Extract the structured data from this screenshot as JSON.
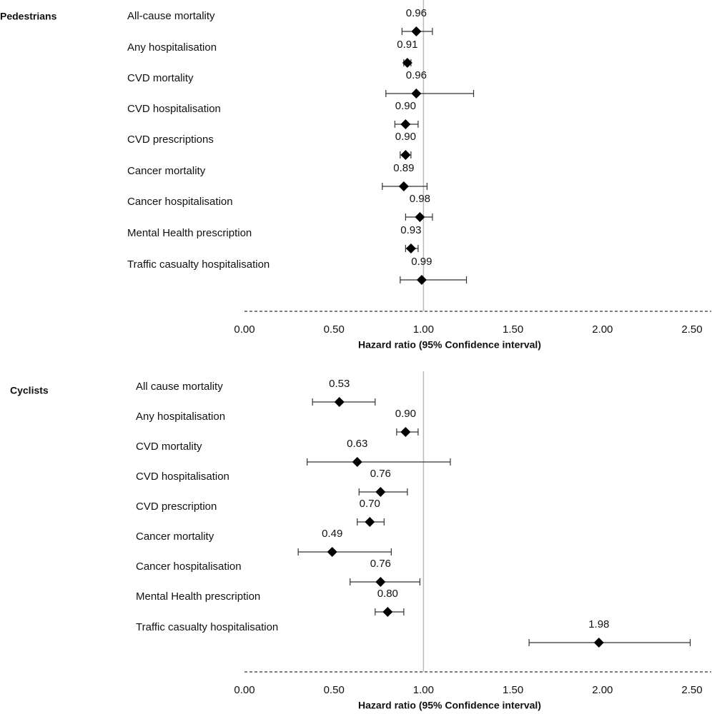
{
  "chart_data": [
    {
      "type": "forest",
      "title": "Pedestrians",
      "categories": [
        "All-cause mortality",
        "Any hospitalisation",
        "CVD mortality",
        "CVD hospitalisation",
        "CVD prescriptions",
        "Cancer mortality",
        "Cancer hospitalisation",
        "Mental Health prescription",
        "Traffic casualty hospitalisation"
      ],
      "values": [
        0.96,
        0.91,
        0.96,
        0.9,
        0.9,
        0.89,
        0.98,
        0.93,
        0.99
      ],
      "value_labels": [
        "0.96",
        "0.91",
        "0.96",
        "0.90",
        "0.90",
        "0.89",
        "0.98",
        "0.93",
        "0.99"
      ],
      "lower": [
        0.88,
        0.89,
        0.79,
        0.84,
        0.87,
        0.77,
        0.9,
        0.9,
        0.87
      ],
      "upper": [
        1.05,
        0.93,
        1.28,
        0.97,
        0.93,
        1.02,
        1.05,
        0.97,
        1.24
      ],
      "color": "#000000",
      "xlabel": "Hazard ratio (95% Confidence interval)",
      "xlim": [
        0,
        2.5
      ],
      "xticks": [
        {
          "value": 0,
          "label": "0.00"
        },
        {
          "value": 0.5,
          "label": "0.50"
        },
        {
          "value": 1,
          "label": "1.00"
        },
        {
          "value": 1.5,
          "label": "1.50"
        },
        {
          "value": 2,
          "label": "2.00"
        },
        {
          "value": 2.5,
          "label": "2.50"
        }
      ],
      "reference_line": 1
    },
    {
      "type": "forest",
      "title": "Cyclists",
      "categories": [
        "All cause mortality",
        "Any hospitalisation",
        "CVD mortality",
        "CVD hospitalisation",
        "CVD prescription",
        "Cancer mortality",
        "Cancer hospitalisation",
        "Mental Health prescription",
        "Traffic casualty hospitalisation"
      ],
      "values": [
        0.53,
        0.9,
        0.63,
        0.76,
        0.7,
        0.49,
        0.76,
        0.8,
        1.98
      ],
      "value_labels": [
        "0.53",
        "0.90",
        "0.63",
        "0.76",
        "0.70",
        "0.49",
        "0.76",
        "0.80",
        "1.98"
      ],
      "lower": [
        0.38,
        0.85,
        0.35,
        0.64,
        0.63,
        0.3,
        0.59,
        0.73,
        1.59
      ],
      "upper": [
        0.73,
        0.97,
        1.15,
        0.91,
        0.78,
        0.82,
        0.98,
        0.89,
        2.49
      ],
      "color": "#000000",
      "xlabel": "Hazard ratio (95% Confidence interval)",
      "xlim": [
        0,
        2.5
      ],
      "xticks": [
        {
          "value": 0,
          "label": "0.00"
        },
        {
          "value": 0.5,
          "label": "0.50"
        },
        {
          "value": 1,
          "label": "1.00"
        },
        {
          "value": 1.5,
          "label": "1.50"
        },
        {
          "value": 2,
          "label": "2.00"
        },
        {
          "value": 2.5,
          "label": "2.50"
        }
      ],
      "reference_line": 1
    }
  ]
}
